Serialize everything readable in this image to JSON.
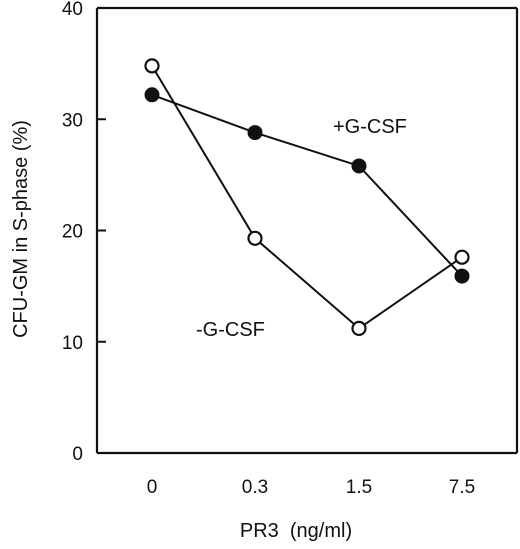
{
  "chart_data": {
    "type": "line",
    "xlabel": "PR3  (ng/ml)",
    "ylabel": "CFU-GM in S-phase (%)",
    "categories": [
      "0",
      "0.3",
      "1.5",
      "7.5"
    ],
    "ylim": [
      0,
      40
    ],
    "yticks": [
      0,
      10,
      20,
      30,
      40
    ],
    "grid": false,
    "legend": "inline labels",
    "series": [
      {
        "name": "+G-CSF",
        "marker": "filled",
        "values": [
          32.2,
          28.8,
          25.8,
          15.9
        ]
      },
      {
        "name": "-G-CSF",
        "marker": "open",
        "values": [
          34.8,
          19.3,
          11.2,
          17.6
        ]
      }
    ]
  }
}
